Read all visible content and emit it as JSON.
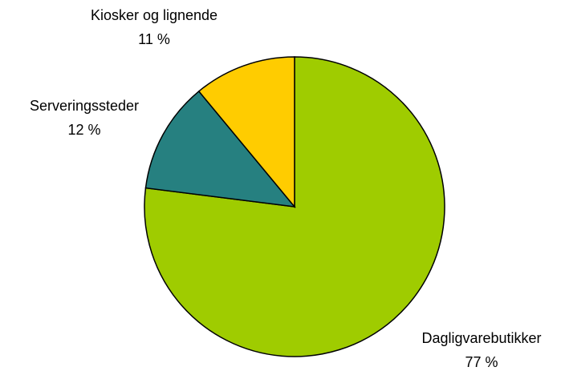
{
  "chart_data": {
    "type": "pie",
    "categories": [
      "Dagligvarebutikker",
      "Serveringssteder",
      "Kiosker og lignende"
    ],
    "values": [
      77,
      12,
      11
    ],
    "value_labels": [
      "77 %",
      "12 %",
      "11 %"
    ],
    "colors": [
      "#9fcc00",
      "#268080",
      "#ffcc00"
    ]
  }
}
